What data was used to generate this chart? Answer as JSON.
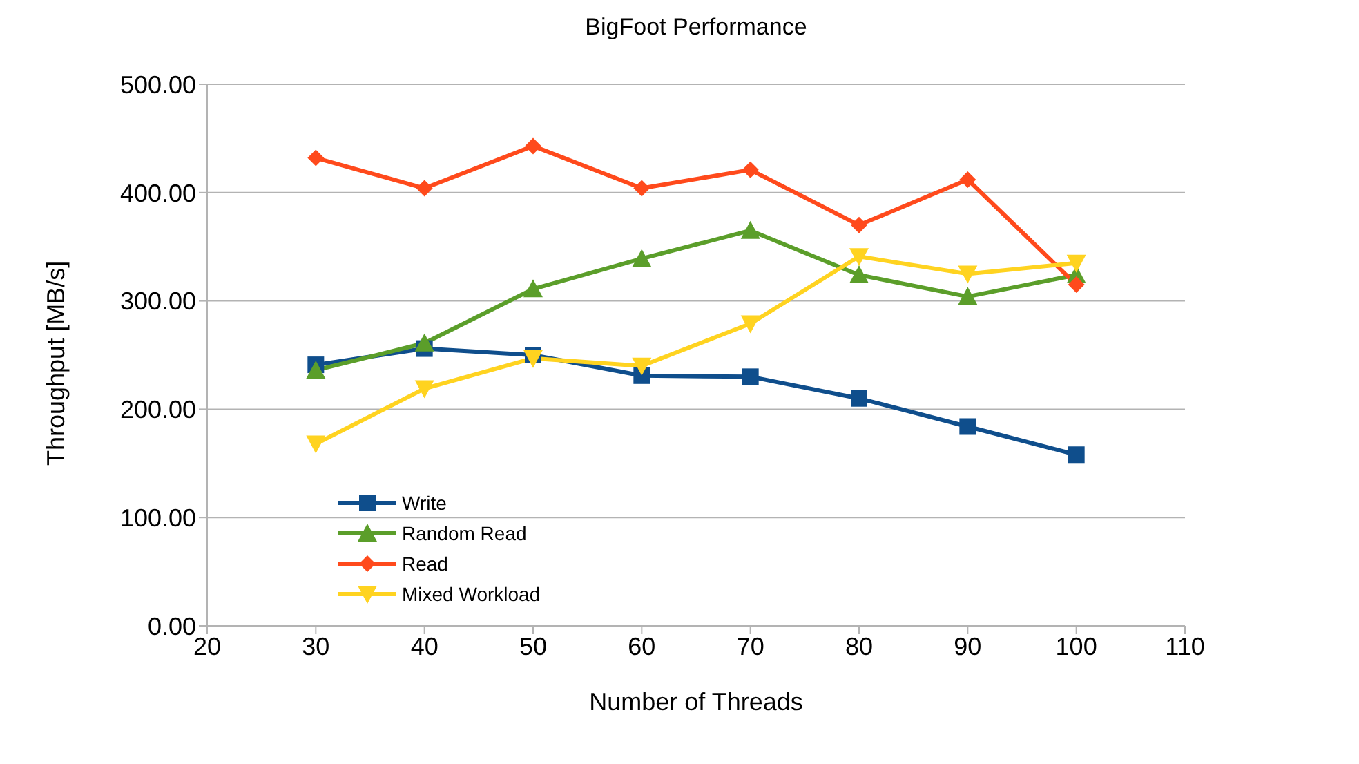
{
  "chart_data": {
    "type": "line",
    "title": "BigFoot Performance",
    "xlabel": "Number of Threads",
    "ylabel": "Throughput [MB/s]",
    "x": [
      30,
      40,
      50,
      60,
      70,
      80,
      90,
      100
    ],
    "series": [
      {
        "name": "Write",
        "color": "#0f4e8c",
        "marker": "square",
        "values": [
          241,
          256,
          250,
          231,
          230,
          210,
          184,
          158
        ]
      },
      {
        "name": "Random Read",
        "color": "#5b9e2a",
        "marker": "triangle",
        "values": [
          236,
          261,
          311,
          339,
          365,
          324,
          304,
          324
        ]
      },
      {
        "name": "Read",
        "color": "#ff4a1c",
        "marker": "diamond",
        "values": [
          432,
          404,
          443,
          404,
          421,
          370,
          412,
          315
        ]
      },
      {
        "name": "Mixed Workload",
        "color": "#ffd320",
        "marker": "triangle-down",
        "values": [
          168,
          219,
          247,
          240,
          279,
          341,
          325,
          335
        ]
      }
    ],
    "xlim": [
      20,
      110
    ],
    "xticks": [
      20,
      30,
      40,
      50,
      60,
      70,
      80,
      90,
      100,
      110
    ],
    "ylim": [
      0,
      500
    ],
    "yticks": [
      {
        "value": 0,
        "label": "0.00"
      },
      {
        "value": 100,
        "label": "100.00"
      },
      {
        "value": 200,
        "label": "200.00"
      },
      {
        "value": 300,
        "label": "300.00"
      },
      {
        "value": 400,
        "label": "400.00"
      },
      {
        "value": 500,
        "label": "500.00"
      }
    ],
    "grid": "y",
    "legend": "bottom left",
    "line_style": "solid"
  }
}
